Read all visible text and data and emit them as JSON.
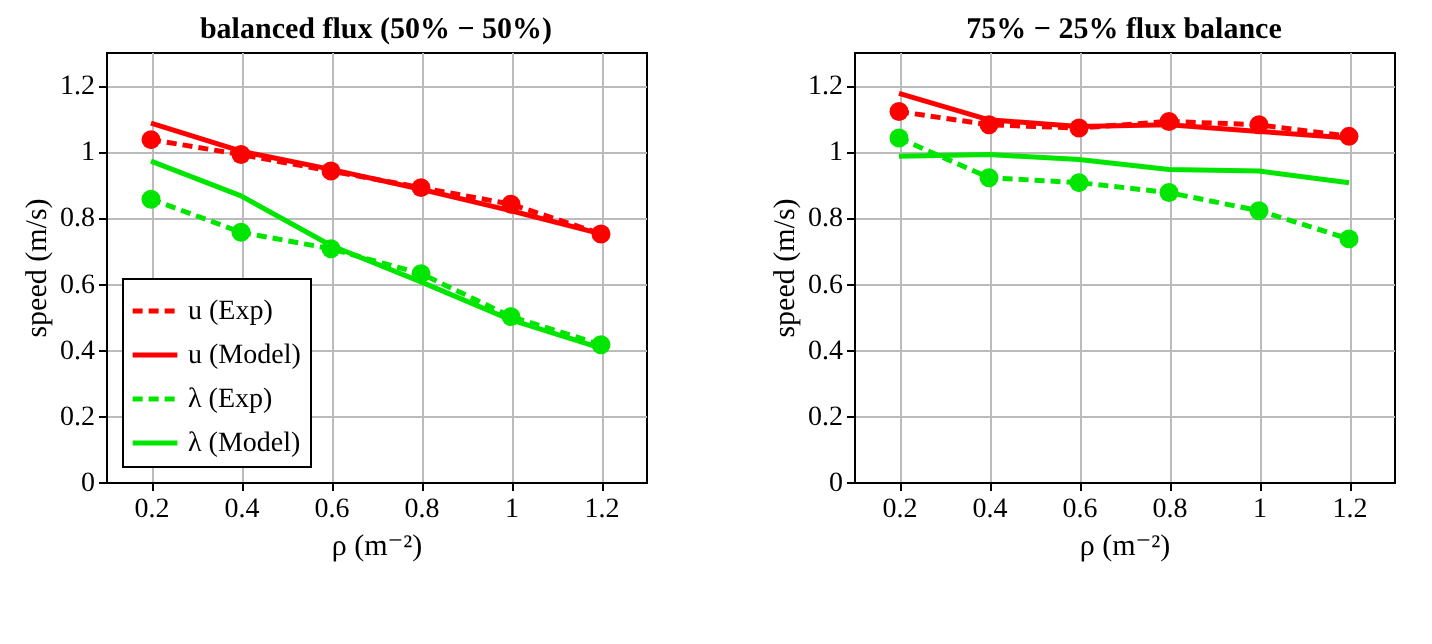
{
  "chart_data": [
    {
      "type": "line",
      "title": "balanced flux (50% − 50%)",
      "xlabel": "ρ  (m⁻²)",
      "ylabel": "speed (m/s)",
      "x": [
        0.2,
        0.4,
        0.6,
        0.8,
        1,
        1.2
      ],
      "xlim": [
        0.1,
        1.3
      ],
      "xticks": [
        0.2,
        0.4,
        0.6,
        0.8,
        1,
        1.2
      ],
      "ylim": [
        0,
        1.3
      ],
      "yticks": [
        0,
        0.2,
        0.4,
        0.6,
        0.8,
        1,
        1.2
      ],
      "grid": true,
      "legend": "bottom left",
      "series": [
        {
          "name": "u (Exp)",
          "color": "#ff0000",
          "marker": "circle",
          "line_style": "dashed",
          "values": [
            1.035,
            0.99,
            0.94,
            0.89,
            0.84,
            0.75
          ]
        },
        {
          "name": "u (Model)",
          "color": "#ff0000",
          "marker": "none",
          "line_style": "solid",
          "values": [
            1.085,
            1.0,
            0.945,
            0.885,
            0.82,
            0.75
          ]
        },
        {
          "name": "λ (Exp)",
          "color": "#00e600",
          "marker": "circle",
          "line_style": "dashed",
          "values": [
            0.855,
            0.755,
            0.705,
            0.63,
            0.5,
            0.415
          ]
        },
        {
          "name": "λ (Model)",
          "color": "#00e600",
          "marker": "none",
          "line_style": "solid",
          "values": [
            0.97,
            0.865,
            0.715,
            0.605,
            0.49,
            0.405
          ]
        }
      ]
    },
    {
      "type": "line",
      "title": "75% − 25% flux balance",
      "xlabel": "ρ  (m⁻²)",
      "ylabel": "speed (m/s)",
      "x": [
        0.2,
        0.4,
        0.6,
        0.8,
        1,
        1.2
      ],
      "xlim": [
        0.1,
        1.3
      ],
      "xticks": [
        0.2,
        0.4,
        0.6,
        0.8,
        1,
        1.2
      ],
      "ylim": [
        0,
        1.3
      ],
      "yticks": [
        0,
        0.2,
        0.4,
        0.6,
        0.8,
        1,
        1.2
      ],
      "grid": true,
      "legend": "bottom left",
      "series": [
        {
          "name": "u (Exp)",
          "color": "#ff0000",
          "marker": "circle",
          "line_style": "dashed",
          "values": [
            1.12,
            1.08,
            1.07,
            1.09,
            1.08,
            1.045
          ]
        },
        {
          "name": "u (Model)",
          "color": "#ff0000",
          "marker": "none",
          "line_style": "solid",
          "values": [
            1.175,
            1.095,
            1.075,
            1.08,
            1.06,
            1.04
          ]
        },
        {
          "name": "λ (Exp)",
          "color": "#00e600",
          "marker": "circle",
          "line_style": "dashed",
          "values": [
            1.04,
            0.92,
            0.905,
            0.875,
            0.82,
            0.735
          ]
        },
        {
          "name": "λ (Model)",
          "color": "#00e600",
          "marker": "none",
          "line_style": "solid",
          "values": [
            0.985,
            0.99,
            0.975,
            0.945,
            0.94,
            0.905
          ]
        }
      ]
    }
  ]
}
